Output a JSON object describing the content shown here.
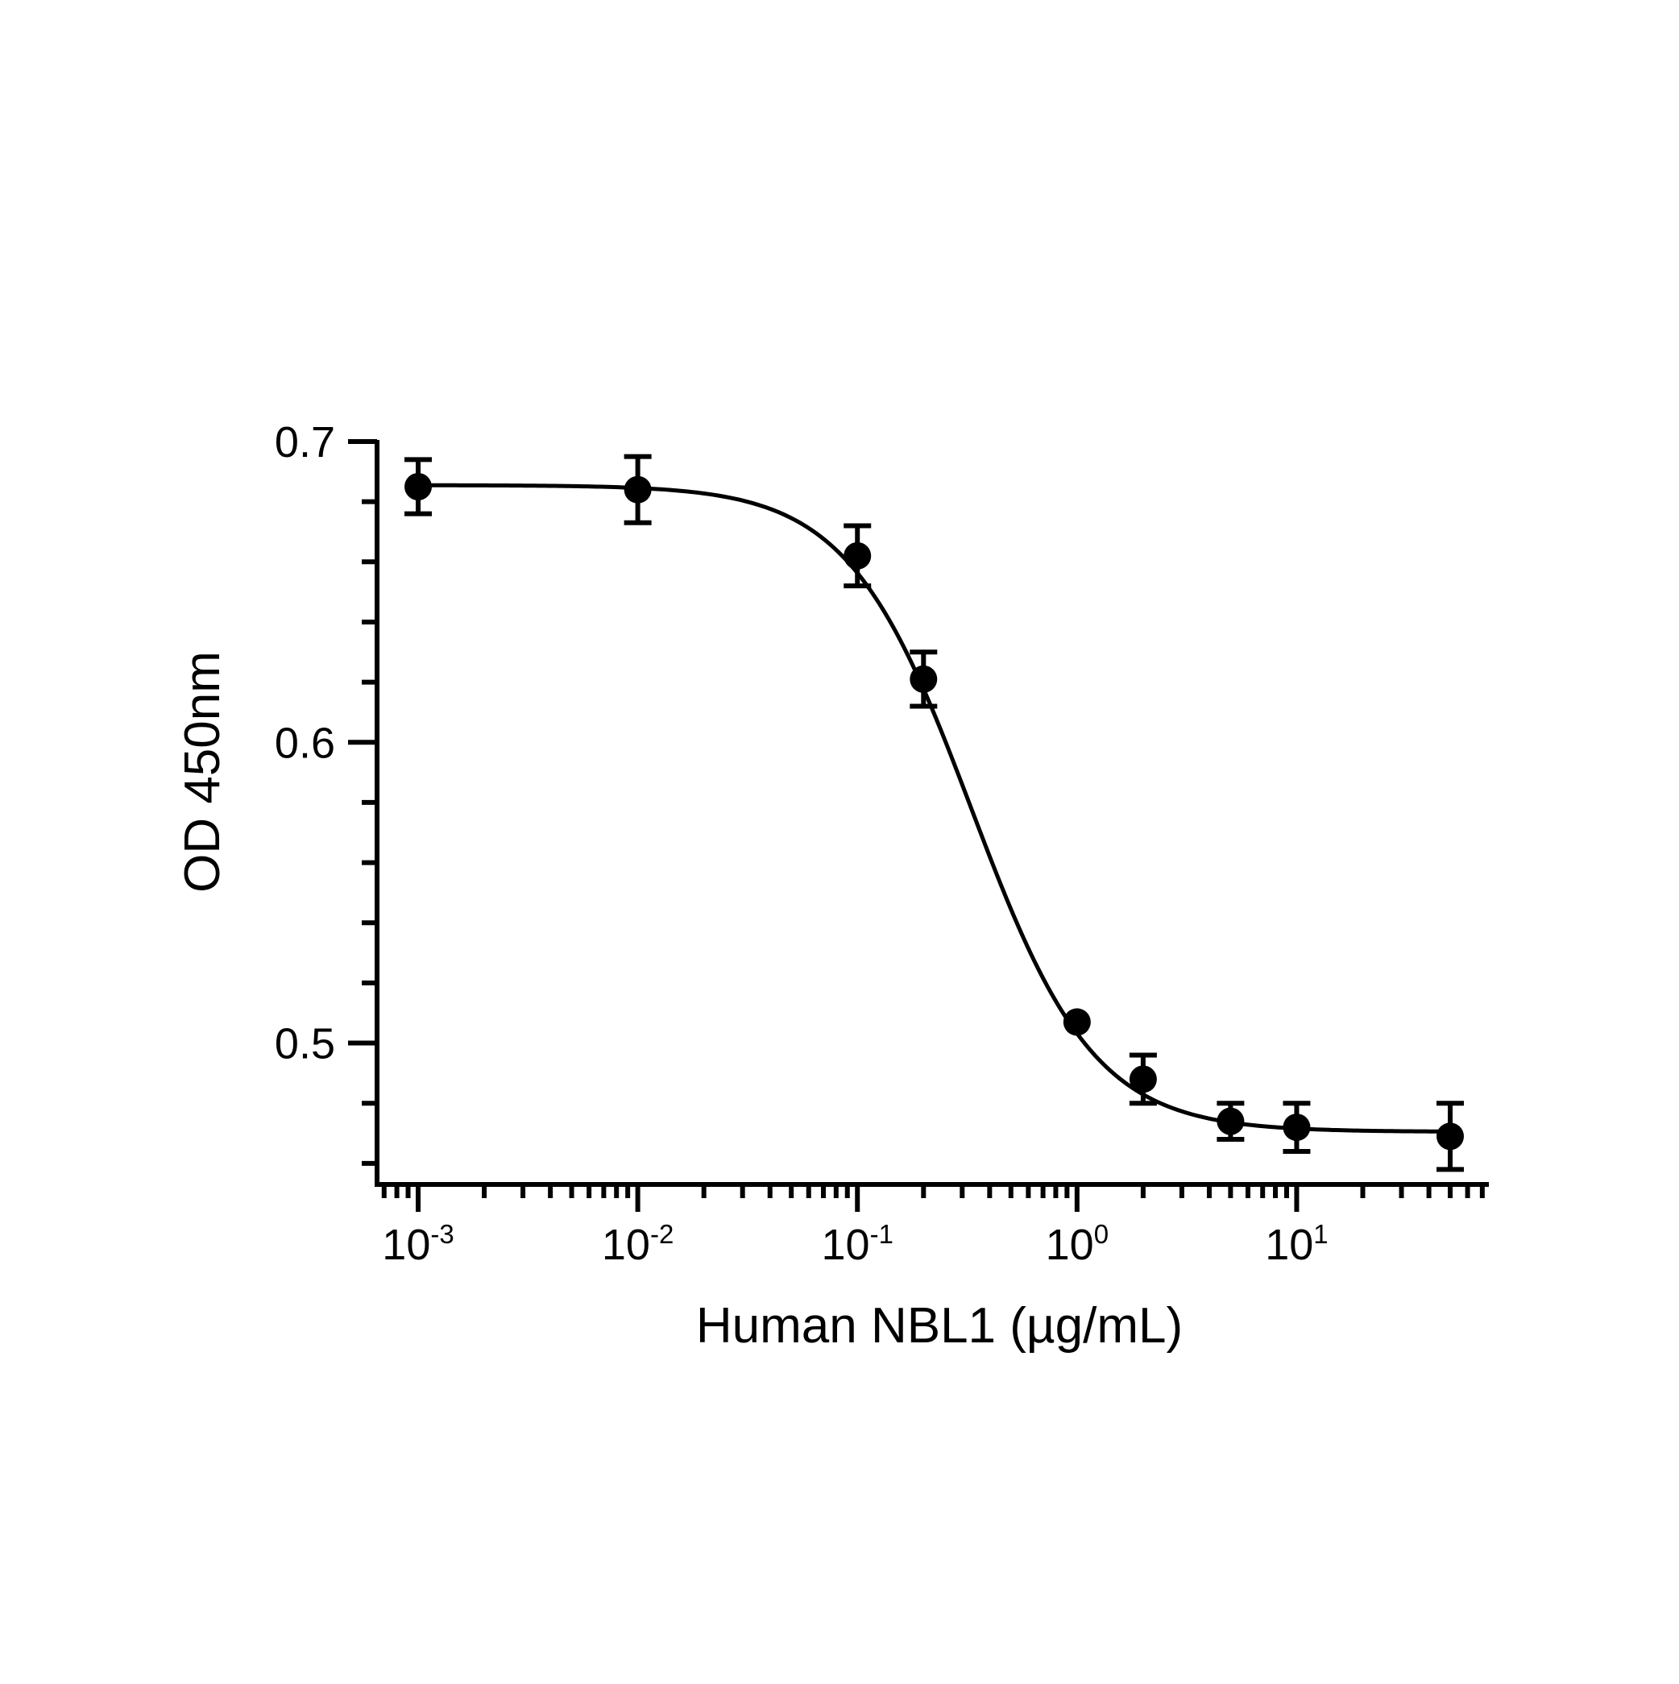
{
  "chart_data": {
    "type": "scatter",
    "xlabel": "Human NBL1 (µg/mL)",
    "ylabel": "OD 450nm",
    "xscale": "log",
    "xlim": [
      0.00065,
      75
    ],
    "ylim": [
      0.453,
      0.7
    ],
    "grid": false,
    "legend": "none",
    "y_ticks": [
      {
        "value": 0.5,
        "label": "0.5"
      },
      {
        "value": 0.6,
        "label": "0.6"
      },
      {
        "value": 0.7,
        "label": "0.7"
      }
    ],
    "x_ticks": [
      {
        "value": 0.001,
        "base": "10",
        "exp": "-3"
      },
      {
        "value": 0.01,
        "base": "10",
        "exp": "-2"
      },
      {
        "value": 0.1,
        "base": "10",
        "exp": "-1"
      },
      {
        "value": 1,
        "base": "10",
        "exp": "0"
      },
      {
        "value": 10,
        "base": "10",
        "exp": "1"
      }
    ],
    "series": [
      {
        "x": [
          0.001,
          0.01,
          0.1,
          0.2,
          1,
          2,
          5,
          10,
          50
        ],
        "y": [
          0.685,
          0.684,
          0.662,
          0.621,
          0.507,
          0.488,
          0.474,
          0.472,
          0.469
        ],
        "y_err": [
          0.009,
          0.011,
          0.01,
          0.009,
          0.0,
          0.008,
          0.006,
          0.008,
          0.011
        ]
      }
    ],
    "fit": {
      "model": "4PL",
      "top": 0.6855,
      "bottom": 0.4705,
      "ec50": 0.33,
      "hill": 1.55
    },
    "colors": {
      "marks": "#000000",
      "background": "#ffffff"
    }
  }
}
